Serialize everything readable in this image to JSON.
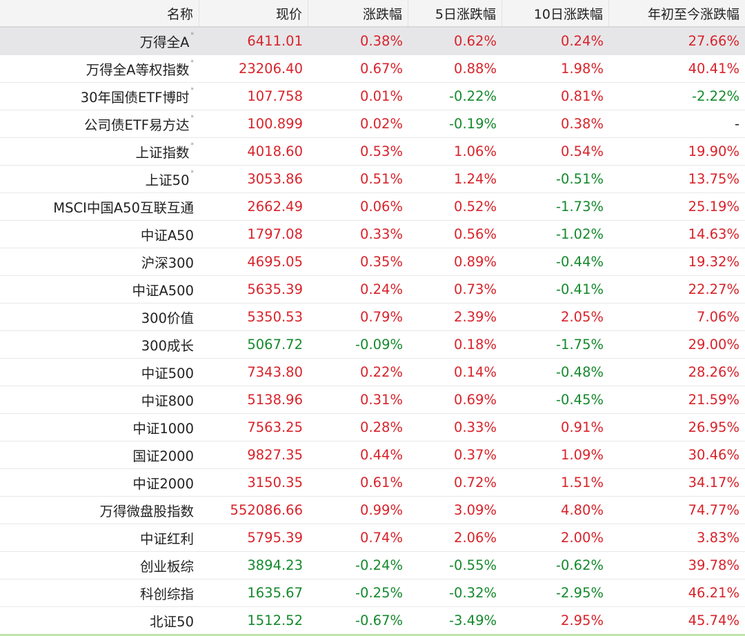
{
  "headers": [
    "名称",
    "现价",
    "涨跌幅",
    "5日涨跌幅",
    "10日涨跌幅",
    "年初至今涨跌幅"
  ],
  "colors": {
    "up": "#d8232a",
    "down": "#14892c",
    "neutral": "#222222",
    "selected_row": "#e6e6e9"
  },
  "rows": [
    {
      "name": "万得全A",
      "mark": "*",
      "selected": true,
      "price": "6411.01",
      "chg": "0.38%",
      "chg5": "0.62%",
      "chg10": "0.24%",
      "ytd": "27.66%"
    },
    {
      "name": "万得全A等权指数",
      "mark": "*",
      "price": "23206.40",
      "chg": "0.67%",
      "chg5": "0.88%",
      "chg10": "1.98%",
      "ytd": "40.41%"
    },
    {
      "name": "30年国债ETF博时",
      "mark": "*",
      "price": "107.758",
      "chg": "0.01%",
      "chg5": "-0.22%",
      "chg10": "0.81%",
      "ytd": "-2.22%"
    },
    {
      "name": "公司债ETF易方达",
      "mark": "*",
      "price": "100.899",
      "chg": "0.02%",
      "chg5": "-0.19%",
      "chg10": "0.38%",
      "ytd": "-"
    },
    {
      "name": "上证指数",
      "mark": "*",
      "price": "4018.60",
      "chg": "0.53%",
      "chg5": "1.06%",
      "chg10": "0.54%",
      "ytd": "19.90%"
    },
    {
      "name": "上证50",
      "mark": "*",
      "price": "3053.86",
      "chg": "0.51%",
      "chg5": "1.24%",
      "chg10": "-0.51%",
      "ytd": "13.75%"
    },
    {
      "name": "MSCI中国A50互联互通",
      "mark": "",
      "price": "2662.49",
      "chg": "0.06%",
      "chg5": "0.52%",
      "chg10": "-1.73%",
      "ytd": "25.19%"
    },
    {
      "name": "中证A50",
      "mark": "",
      "price": "1797.08",
      "chg": "0.33%",
      "chg5": "0.56%",
      "chg10": "-1.02%",
      "ytd": "14.63%"
    },
    {
      "name": "沪深300",
      "mark": "",
      "price": "4695.05",
      "chg": "0.35%",
      "chg5": "0.89%",
      "chg10": "-0.44%",
      "ytd": "19.32%"
    },
    {
      "name": "中证A500",
      "mark": "",
      "price": "5635.39",
      "chg": "0.24%",
      "chg5": "0.73%",
      "chg10": "-0.41%",
      "ytd": "22.27%"
    },
    {
      "name": "300价值",
      "mark": "",
      "price": "5350.53",
      "chg": "0.79%",
      "chg5": "2.39%",
      "chg10": "2.05%",
      "ytd": "7.06%"
    },
    {
      "name": "300成长",
      "mark": "",
      "price": "5067.72",
      "chg": "-0.09%",
      "chg5": "0.18%",
      "chg10": "-1.75%",
      "ytd": "29.00%"
    },
    {
      "name": "中证500",
      "mark": "",
      "price": "7343.80",
      "chg": "0.22%",
      "chg5": "0.14%",
      "chg10": "-0.48%",
      "ytd": "28.26%"
    },
    {
      "name": "中证800",
      "mark": "",
      "price": "5138.96",
      "chg": "0.31%",
      "chg5": "0.69%",
      "chg10": "-0.45%",
      "ytd": "21.59%"
    },
    {
      "name": "中证1000",
      "mark": "",
      "price": "7563.25",
      "chg": "0.28%",
      "chg5": "0.33%",
      "chg10": "0.91%",
      "ytd": "26.95%"
    },
    {
      "name": "国证2000",
      "mark": "",
      "price": "9827.35",
      "chg": "0.44%",
      "chg5": "0.37%",
      "chg10": "1.09%",
      "ytd": "30.46%"
    },
    {
      "name": "中证2000",
      "mark": "",
      "price": "3150.35",
      "chg": "0.61%",
      "chg5": "0.72%",
      "chg10": "1.51%",
      "ytd": "34.17%"
    },
    {
      "name": "万得微盘股指数",
      "mark": "",
      "price": "552086.66",
      "chg": "0.99%",
      "chg5": "3.09%",
      "chg10": "4.80%",
      "ytd": "74.77%"
    },
    {
      "name": "中证红利",
      "mark": "",
      "price": "5795.39",
      "chg": "0.74%",
      "chg5": "2.06%",
      "chg10": "2.00%",
      "ytd": "3.83%"
    },
    {
      "name": "创业板综",
      "mark": "",
      "price": "3894.23",
      "chg": "-0.24%",
      "chg5": "-0.55%",
      "chg10": "-0.62%",
      "ytd": "39.78%"
    },
    {
      "name": "科创综指",
      "mark": "",
      "price": "1635.67",
      "chg": "-0.25%",
      "chg5": "-0.32%",
      "chg10": "-2.95%",
      "ytd": "46.21%"
    },
    {
      "name": "北证50",
      "mark": "",
      "price": "1512.52",
      "chg": "-0.67%",
      "chg5": "-3.49%",
      "chg10": "2.95%",
      "ytd": "45.74%"
    }
  ]
}
